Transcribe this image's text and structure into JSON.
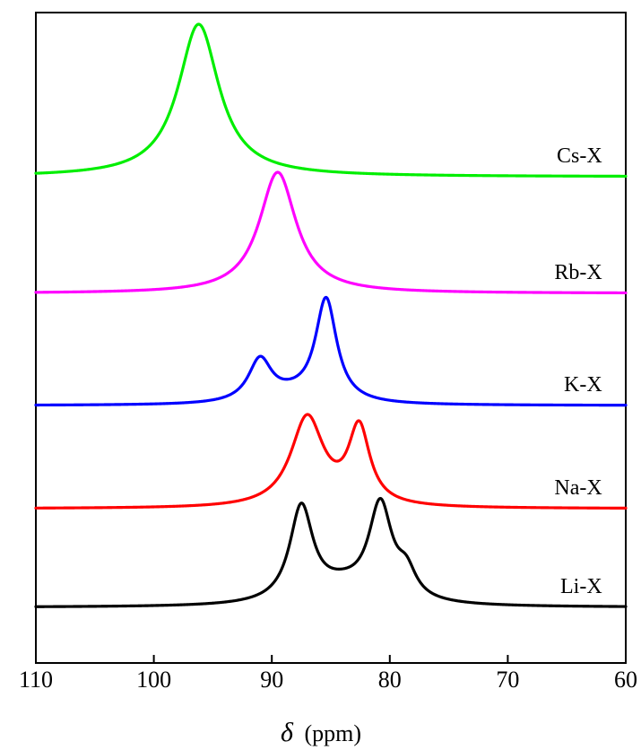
{
  "chart_data": {
    "type": "line",
    "title": "",
    "xlabel_symbol": "δ",
    "xlabel_unit": "(ppm)",
    "ylabel": "",
    "xlim": [
      110,
      60
    ],
    "x_reversed": true,
    "x_ticks": [
      110,
      100,
      90,
      80,
      70,
      60
    ],
    "y_ticks_shown": false,
    "grid": false,
    "legend": "none",
    "series": [
      {
        "name": "Li-X",
        "color": "#000000",
        "baseline": 0,
        "label_x": 62,
        "peaks": [
          {
            "center": 87.5,
            "width": 1.2,
            "height": 1.05
          },
          {
            "center": 80.8,
            "width": 1.2,
            "height": 1.05
          },
          {
            "center": 78.6,
            "width": 1.0,
            "height": 0.28
          },
          {
            "center": 84.0,
            "width": 3.0,
            "height": 0.18
          }
        ]
      },
      {
        "name": "Na-X",
        "color": "#ff0000",
        "baseline": 1.1,
        "label_x": 62,
        "peaks": [
          {
            "center": 87.0,
            "width": 1.7,
            "height": 1.0
          },
          {
            "center": 82.6,
            "width": 1.1,
            "height": 0.85
          }
        ]
      },
      {
        "name": "K-X",
        "color": "#0000ff",
        "baseline": 2.25,
        "label_x": 62,
        "peaks": [
          {
            "center": 91.0,
            "width": 1.2,
            "height": 0.47
          },
          {
            "center": 85.4,
            "width": 1.1,
            "height": 1.15
          },
          {
            "center": 88.2,
            "width": 2.5,
            "height": 0.08
          }
        ]
      },
      {
        "name": "Rb-X",
        "color": "#ff00ff",
        "baseline": 3.5,
        "label_x": 62,
        "peaks": [
          {
            "center": 89.5,
            "width": 1.9,
            "height": 1.35
          }
        ]
      },
      {
        "name": "Cs-X",
        "color": "#00ee00",
        "baseline": 4.8,
        "label_x": 62,
        "peaks": [
          {
            "center": 96.2,
            "width": 2.1,
            "height": 1.7
          }
        ]
      }
    ]
  }
}
